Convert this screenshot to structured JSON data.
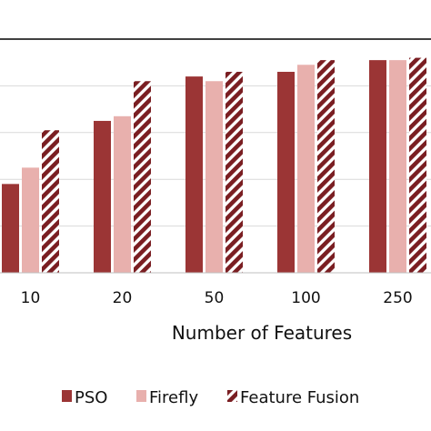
{
  "chart_data": {
    "type": "bar",
    "categories": [
      "10",
      "20",
      "50",
      "100",
      "250"
    ],
    "series": [
      {
        "name": "PSO",
        "color": "#9b3535",
        "pattern": "solid",
        "values": [
          0.38,
          0.65,
          0.84,
          0.86,
          0.91
        ]
      },
      {
        "name": "Firefly",
        "color": "#e8b0ad",
        "pattern": "solid",
        "values": [
          0.45,
          0.67,
          0.82,
          0.89,
          0.91
        ]
      },
      {
        "name": "Feature Fusion",
        "color": "#7a1e22",
        "pattern": "diagonal-stripes",
        "values": [
          0.61,
          0.82,
          0.86,
          0.91,
          0.92
        ]
      }
    ],
    "title": "",
    "xlabel": "Number of Features",
    "ylabel": "",
    "ylim": [
      0,
      1.0
    ],
    "grid": true,
    "legend_position": "bottom"
  }
}
